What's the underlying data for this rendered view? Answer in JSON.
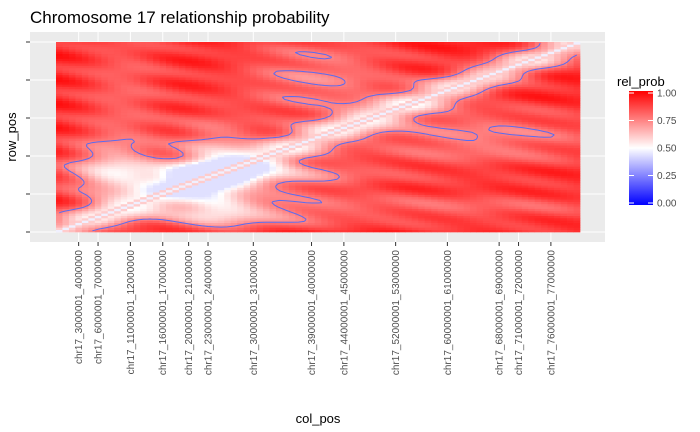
{
  "chart_data": {
    "type": "heatmap",
    "title": "Chromosome 17 relationship probability",
    "xlabel": "col_pos",
    "ylabel": "row_pos",
    "x_ticks": [
      "chr17_3000001_4000000",
      "chr17_6000001_7000000",
      "chr17_11000001_12000000",
      "chr17_16000001_17000000",
      "chr17_20000001_21000000",
      "chr17_23000001_24000000",
      "chr17_30000001_31000000",
      "chr17_39000001_40000000",
      "chr17_44000001_45000000",
      "chr17_52000001_53000000",
      "chr17_60000001_61000000",
      "chr17_68000001_69000000",
      "chr17_71000001_72000000",
      "chr17_76000001_77000000"
    ],
    "x_tick_positions_mb": [
      3,
      6,
      11,
      16,
      20,
      23,
      30,
      39,
      44,
      52,
      60,
      68,
      71,
      76
    ],
    "x_range_mb": [
      0,
      81
    ],
    "y_tick_count": 6,
    "contour_level": 0.75,
    "legend": {
      "title": "rel_prob",
      "position": "right",
      "labels": [
        "1.00",
        "0.75",
        "0.50",
        "0.25",
        "0.00"
      ],
      "values": [
        1.0,
        0.75,
        0.5,
        0.25,
        0.0
      ],
      "low_color": "#0000ff",
      "mid_color": "#ffffff",
      "high_color": "#ff0000",
      "midpoint": 0.5
    },
    "grid": true,
    "panel_background": "#ebebeb",
    "contour_color": "#5a6cf0"
  }
}
